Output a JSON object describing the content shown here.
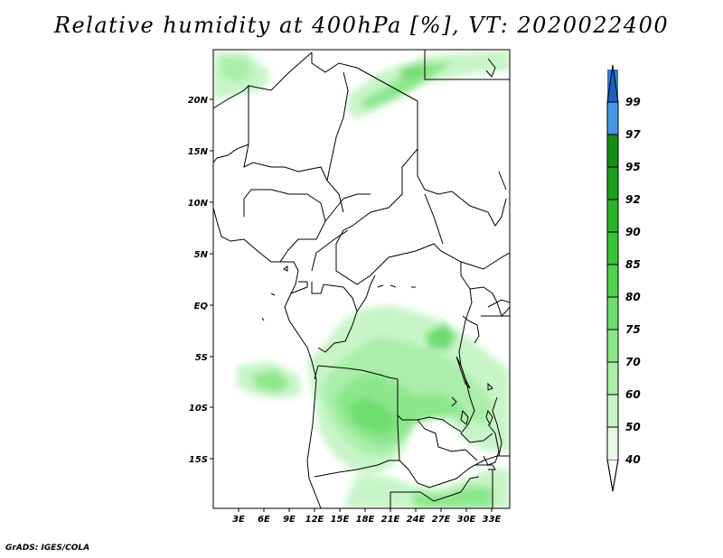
{
  "title": "Relative humidity at 400hPa [%], VT: 2020022400",
  "credit": "GrADS: IGES/COLA",
  "map": {
    "lat_ticks": [
      "20N",
      "15N",
      "10N",
      "5N",
      "EQ",
      "5S",
      "10S",
      "15S"
    ],
    "lon_ticks": [
      "3E",
      "6E",
      "9E",
      "12E",
      "15E",
      "18E",
      "21E",
      "24E",
      "27E",
      "30E",
      "33E"
    ],
    "lon_range": [
      0,
      35
    ],
    "lat_range": [
      -20,
      25
    ]
  },
  "colorbar": {
    "levels": [
      "40",
      "50",
      "60",
      "70",
      "75",
      "80",
      "85",
      "90",
      "92",
      "95",
      "97",
      "99"
    ],
    "colors": [
      "#e6fae6",
      "#c8f5c8",
      "#aaeeaa",
      "#8ce68c",
      "#6edc6e",
      "#50d250",
      "#37c337",
      "#28b428",
      "#1ea01e",
      "#148c14",
      "#4696e6",
      "#2d78d2",
      "#1e5fbe"
    ]
  }
}
